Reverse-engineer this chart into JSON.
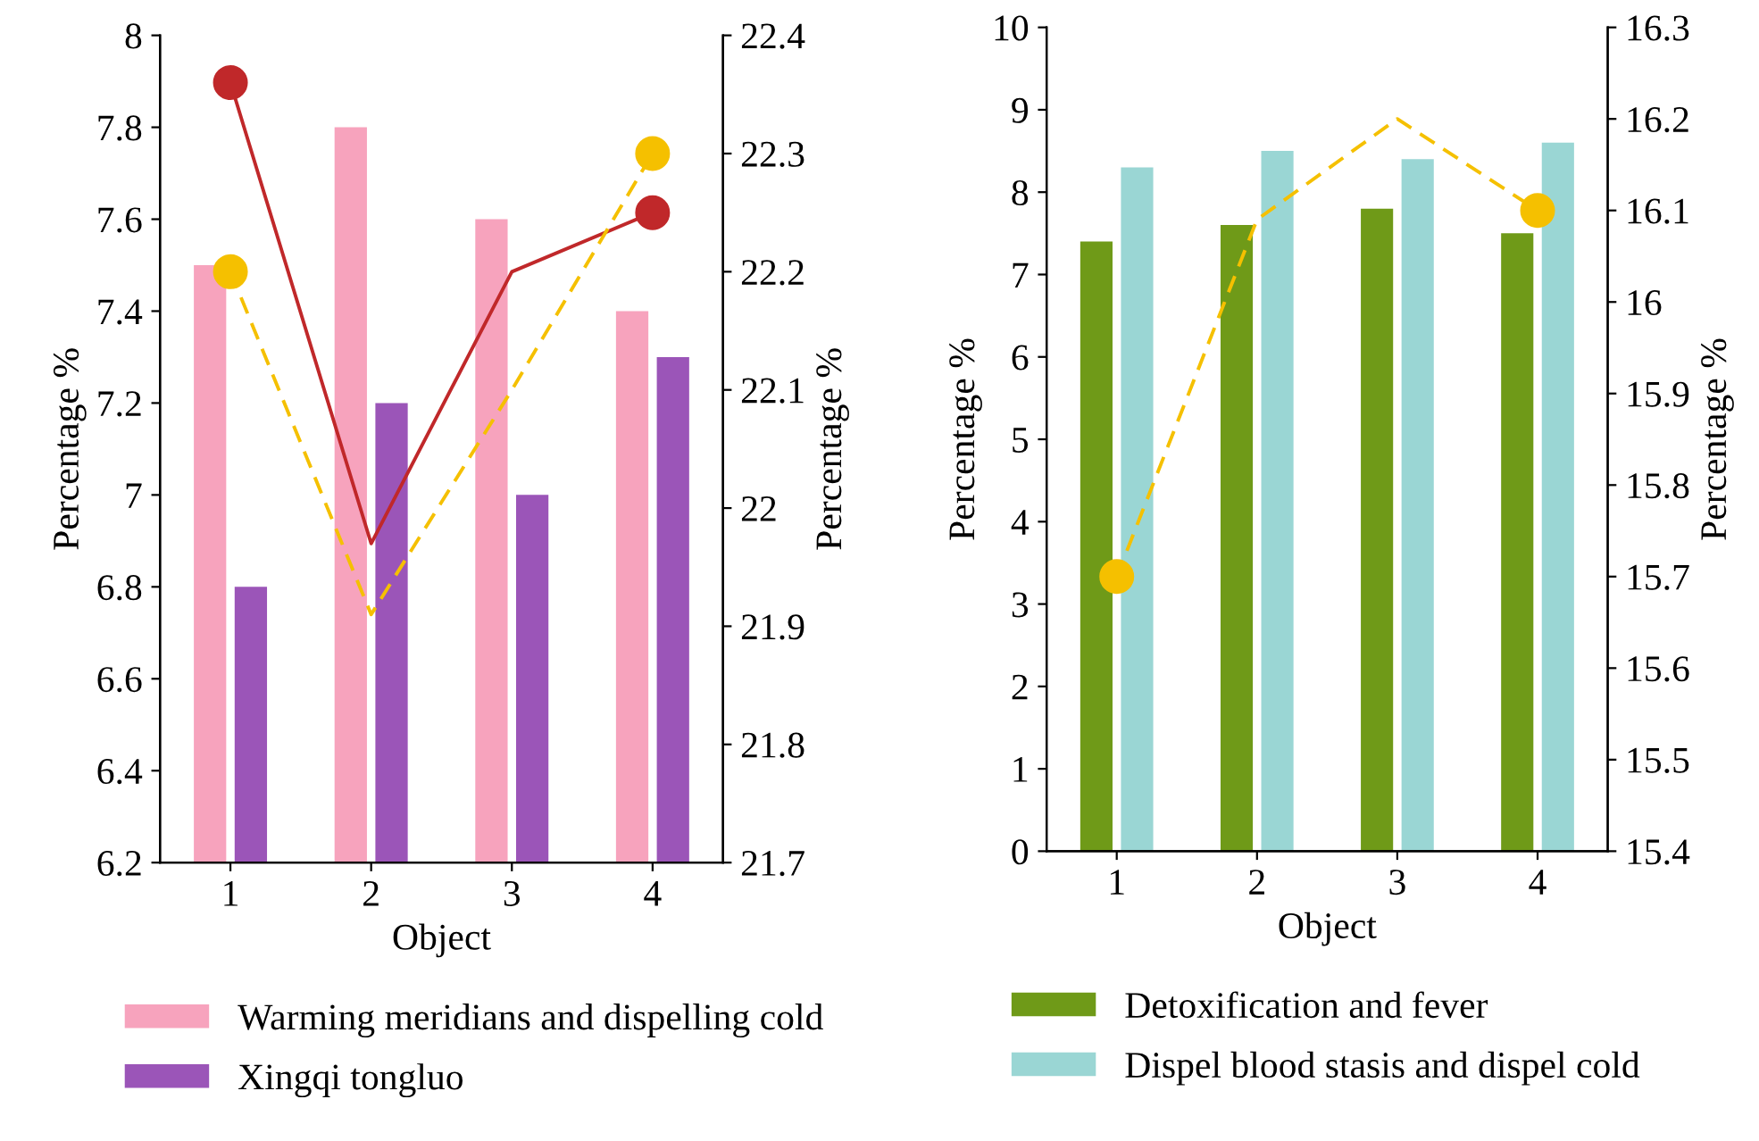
{
  "chart_data": [
    {
      "type": "bar",
      "categories": [
        "1",
        "2",
        "3",
        "4"
      ],
      "xlabel": "Object",
      "ylabel": "Percentage %",
      "y2label": "Percentage %",
      "ylim": [
        6.2,
        8
      ],
      "yticks": [
        6.2,
        6.4,
        6.6,
        6.8,
        7,
        7.2,
        7.4,
        7.6,
        7.8,
        8
      ],
      "y2lim": [
        21.7,
        22.4
      ],
      "y2ticks": [
        21.7,
        21.8,
        21.9,
        22,
        22.1,
        22.2,
        22.3,
        22.4
      ],
      "grid": false,
      "legend": "bottom",
      "series": [
        {
          "name": "Warming meridians and dispelling cold",
          "color": "#f7a3bd",
          "values": [
            7.5,
            7.8,
            7.6,
            7.4
          ]
        },
        {
          "name": "Xingqi tongluo",
          "color": "#9b55b8",
          "values": [
            6.8,
            7.2,
            7.0,
            7.3
          ]
        },
        {
          "type": "line",
          "axis": "y2",
          "color": "#c0282a",
          "line_style": "solid",
          "marker": "none",
          "values": [
            22.36,
            21.97,
            22.2,
            22.25
          ]
        },
        {
          "type": "line",
          "axis": "y2",
          "color": "#f5c000",
          "line_style": "dashed",
          "marker": "none",
          "values": [
            22.2,
            21.91,
            22.1,
            22.3
          ]
        },
        {
          "type": "scatter",
          "axis": "y2",
          "color": "#c0282a",
          "marker": "circle",
          "x": [
            "1",
            "2",
            "3",
            "4"
          ],
          "values": [
            22.36,
            null,
            null,
            22.25
          ]
        },
        {
          "type": "scatter",
          "axis": "y2",
          "color": "#f5c000",
          "marker": "circle",
          "x": [
            "1",
            "2",
            "3",
            "4"
          ],
          "values": [
            22.2,
            null,
            null,
            22.3
          ]
        }
      ]
    },
    {
      "type": "bar",
      "categories": [
        "1",
        "2",
        "3",
        "4"
      ],
      "xlabel": "Object",
      "ylabel": "Percentage %",
      "y2label": "Percentage %",
      "ylim": [
        0,
        10
      ],
      "yticks": [
        0,
        1,
        2,
        3,
        4,
        5,
        6,
        7,
        8,
        9,
        10
      ],
      "y2lim": [
        15.4,
        16.3
      ],
      "y2ticks": [
        15.4,
        15.5,
        15.6,
        15.7,
        15.8,
        15.9,
        16,
        16.1,
        16.2,
        16.3
      ],
      "grid": false,
      "legend": "bottom",
      "series": [
        {
          "name": "Detoxification and fever",
          "color": "#6f9a18",
          "values": [
            7.4,
            7.6,
            7.8,
            7.5
          ]
        },
        {
          "name": "Dispel blood stasis and dispel cold",
          "color": "#9ad6d4",
          "values": [
            8.3,
            8.5,
            8.4,
            8.6
          ]
        },
        {
          "type": "line",
          "axis": "y2",
          "color": "#f5c000",
          "line_style": "dashed",
          "marker": "none",
          "values": [
            15.7,
            16.09,
            16.2,
            16.1
          ]
        },
        {
          "type": "scatter",
          "axis": "y2",
          "color": "#f5c000",
          "marker": "circle",
          "x": [
            "1",
            "2",
            "3",
            "4"
          ],
          "values": [
            15.7,
            null,
            null,
            16.1
          ]
        }
      ]
    }
  ]
}
